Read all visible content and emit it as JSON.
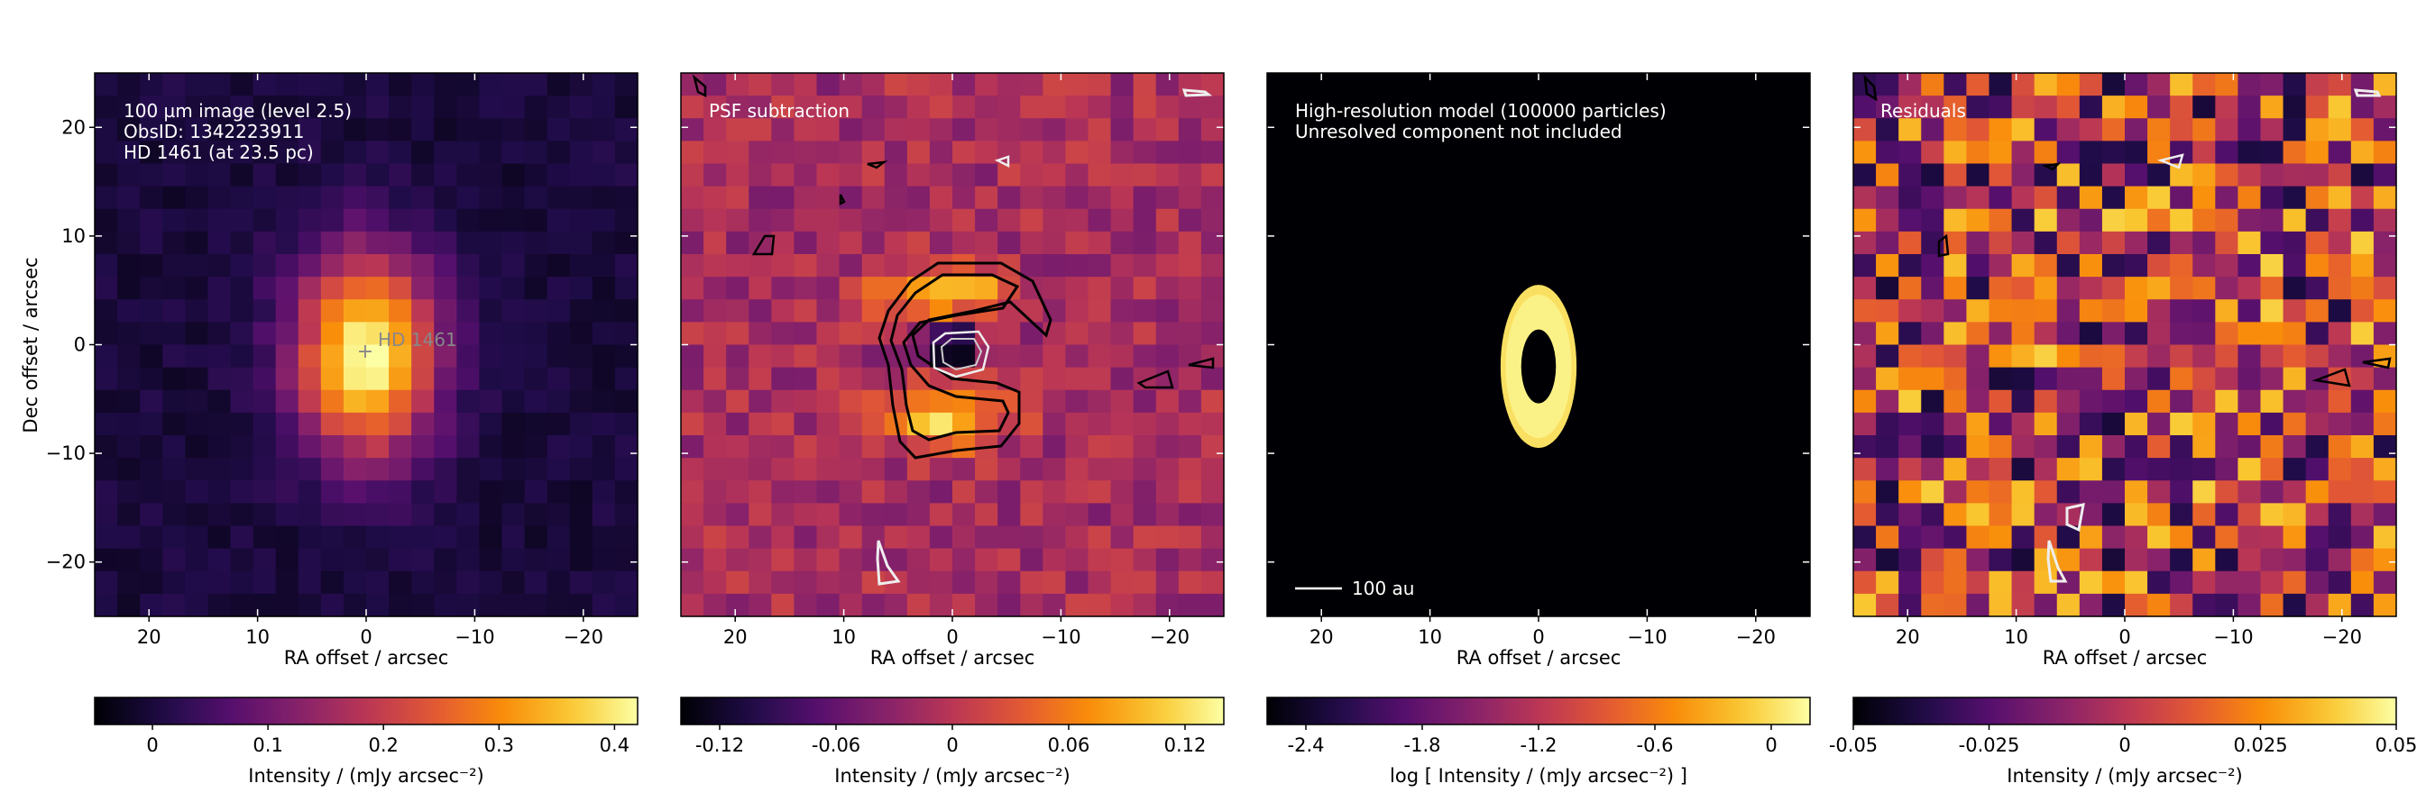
{
  "chart_data": [
    {
      "type": "heatmap",
      "id": "panel-observed",
      "annotation_lines": [
        "100 µm image (level 2.5)",
        "ObsID: 1342223911",
        "HD 1461 (at 23.5 pc)"
      ],
      "star_label": "HD 1461",
      "star_marker": "+",
      "xlabel": "RA offset / arcsec",
      "ylabel": "Dec offset / arcsec",
      "xlim": [
        25,
        -25
      ],
      "ylim": [
        -25,
        25
      ],
      "xticks": [
        20,
        10,
        0,
        -10,
        -20
      ],
      "xtick_labels": [
        "20",
        "10",
        "0",
        "−10",
        "−20"
      ],
      "yticks": [
        20,
        10,
        0,
        -10,
        -20
      ],
      "ytick_labels": [
        "20",
        "10",
        "0",
        "−10",
        "−20"
      ],
      "colormap": "inferno",
      "colorbar": {
        "label": "Intensity / (mJy arcsec⁻²)",
        "range": [
          -0.05,
          0.42
        ],
        "ticks": [
          0,
          0.1,
          0.2,
          0.3,
          0.4
        ],
        "tick_labels": [
          "0",
          "0.1",
          "0.2",
          "0.3",
          "0.4"
        ]
      },
      "source": {
        "x": 0,
        "y": -1,
        "sigma_x": 4.5,
        "sigma_y": 6.5,
        "peak": 0.42
      }
    },
    {
      "type": "heatmap",
      "id": "panel-psf",
      "annotation_lines": [
        "PSF subtraction"
      ],
      "xlabel": "RA offset / arcsec",
      "xlim": [
        25,
        -25
      ],
      "ylim": [
        -25,
        25
      ],
      "xticks": [
        20,
        10,
        0,
        -10,
        -20
      ],
      "xtick_labels": [
        "20",
        "10",
        "0",
        "−10",
        "−20"
      ],
      "colormap": "inferno",
      "colorbar": {
        "label": "Intensity / (mJy arcsec⁻²)",
        "range": [
          -0.14,
          0.14
        ],
        "ticks": [
          -0.12,
          -0.06,
          0,
          0.06,
          0.12
        ],
        "tick_labels": [
          "-0.12",
          "-0.06",
          "0",
          "0.06",
          "0.12"
        ]
      },
      "contour_levels": [
        "positive (black)",
        "negative (white)"
      ]
    },
    {
      "type": "heatmap",
      "id": "panel-model",
      "annotation_lines": [
        "High-resolution model (100000 particles)",
        "Unresolved component not included"
      ],
      "scalebar_label": "100 au",
      "xlabel": "RA offset / arcsec",
      "xlim": [
        25,
        -25
      ],
      "ylim": [
        -25,
        25
      ],
      "xticks": [
        20,
        10,
        0,
        -10,
        -20
      ],
      "xtick_labels": [
        "20",
        "10",
        "0",
        "−10",
        "−20"
      ],
      "colormap": "inferno",
      "colorbar": {
        "label": "log [ Intensity / (mJy arcsec⁻²) ]",
        "range": [
          -2.6,
          0.2
        ],
        "ticks": [
          -2.4,
          -1.8,
          -1.2,
          -0.6,
          0
        ],
        "tick_labels": [
          "-2.4",
          "-1.8",
          "-1.2",
          "-0.6",
          "0"
        ]
      },
      "ring": {
        "x": 0,
        "y": -2,
        "outer_a": 3.5,
        "outer_b": 7.5,
        "inner_a": 1.6,
        "inner_b": 3.4
      }
    },
    {
      "type": "heatmap",
      "id": "panel-residuals",
      "annotation_lines": [
        "Residuals"
      ],
      "xlabel": "RA offset / arcsec",
      "xlim": [
        25,
        -25
      ],
      "ylim": [
        -25,
        25
      ],
      "xticks": [
        20,
        10,
        0,
        -10,
        -20
      ],
      "xtick_labels": [
        "20",
        "10",
        "0",
        "−10",
        "−20"
      ],
      "colormap": "inferno",
      "colorbar": {
        "label": "Intensity / (mJy arcsec⁻²)",
        "range": [
          -0.05,
          0.05
        ],
        "ticks": [
          -0.05,
          -0.025,
          0,
          0.025,
          0.05
        ],
        "tick_labels": [
          "-0.05",
          "-0.025",
          "0",
          "0.025",
          "0.05"
        ]
      }
    }
  ]
}
